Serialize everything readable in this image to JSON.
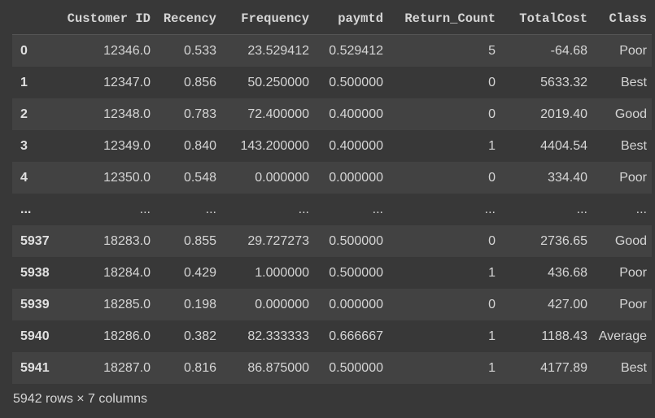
{
  "columns": [
    "",
    "Customer ID",
    "Recency",
    "Frequency",
    "paymtd",
    "Return_Count",
    "TotalCost",
    "Class"
  ],
  "rows": [
    [
      "0",
      "12346.0",
      "0.533",
      "23.529412",
      "0.529412",
      "5",
      "-64.68",
      "Poor"
    ],
    [
      "1",
      "12347.0",
      "0.856",
      "50.250000",
      "0.500000",
      "0",
      "5633.32",
      "Best"
    ],
    [
      "2",
      "12348.0",
      "0.783",
      "72.400000",
      "0.400000",
      "0",
      "2019.40",
      "Good"
    ],
    [
      "3",
      "12349.0",
      "0.840",
      "143.200000",
      "0.400000",
      "1",
      "4404.54",
      "Best"
    ],
    [
      "4",
      "12350.0",
      "0.548",
      "0.000000",
      "0.000000",
      "0",
      "334.40",
      "Poor"
    ],
    [
      "...",
      "...",
      "...",
      "...",
      "...",
      "...",
      "...",
      "..."
    ],
    [
      "5937",
      "18283.0",
      "0.855",
      "29.727273",
      "0.500000",
      "0",
      "2736.65",
      "Good"
    ],
    [
      "5938",
      "18284.0",
      "0.429",
      "1.000000",
      "0.500000",
      "1",
      "436.68",
      "Poor"
    ],
    [
      "5939",
      "18285.0",
      "0.198",
      "0.000000",
      "0.000000",
      "0",
      "427.00",
      "Poor"
    ],
    [
      "5940",
      "18286.0",
      "0.382",
      "82.333333",
      "0.666667",
      "1",
      "1188.43",
      "Average"
    ],
    [
      "5941",
      "18287.0",
      "0.816",
      "86.875000",
      "0.500000",
      "1",
      "4177.89",
      "Best"
    ]
  ],
  "footer": "5942 rows × 7 columns",
  "colors": {
    "background": "#383838",
    "row_alt": "#424242",
    "text": "#d5d5d5"
  }
}
